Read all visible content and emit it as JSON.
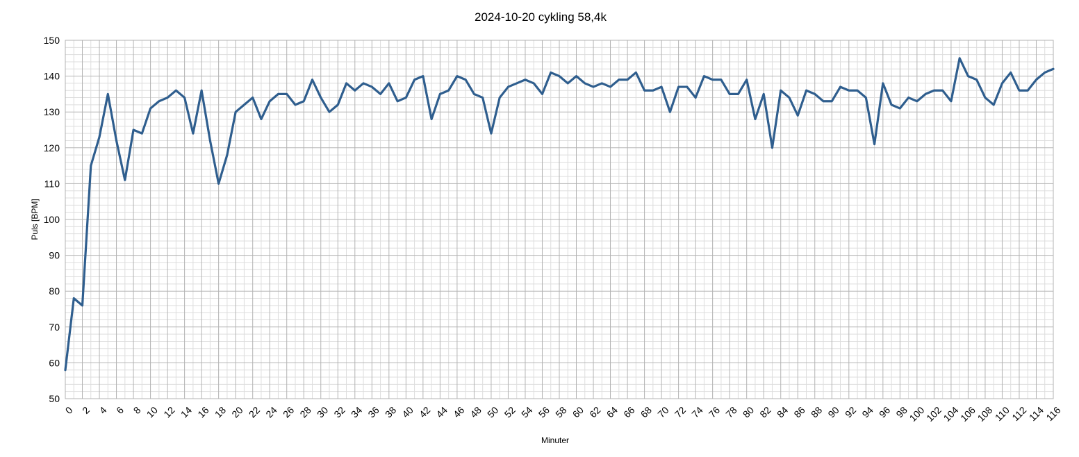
{
  "chart_data": {
    "type": "line",
    "title": "2024-10-20 cykling 58,4k",
    "xlabel": "Minuter",
    "ylabel": "Puls [BPM]",
    "xlim": [
      0,
      116
    ],
    "ylim": [
      50,
      150
    ],
    "y_major_step": 10,
    "y_minor_step": 2,
    "x_major_step": 2,
    "x_minor_step": 1,
    "grid": true,
    "legend": "none",
    "line_color": "#2f5e8e",
    "grid_major_color": "#b3b3b3",
    "grid_minor_color": "#dddddd",
    "x_tick_labels": [
      "0",
      "2",
      "4",
      "6",
      "8",
      "10",
      "12",
      "14",
      "16",
      "18",
      "20",
      "22",
      "24",
      "26",
      "28",
      "30",
      "32",
      "34",
      "36",
      "38",
      "40",
      "42",
      "44",
      "46",
      "48",
      "50",
      "52",
      "54",
      "56",
      "58",
      "60",
      "62",
      "64",
      "66",
      "68",
      "70",
      "72",
      "74",
      "76",
      "78",
      "80",
      "82",
      "84",
      "86",
      "88",
      "90",
      "92",
      "94",
      "96",
      "98",
      "100",
      "102",
      "104",
      "106",
      "108",
      "110",
      "112",
      "114",
      "116"
    ],
    "y_tick_labels": [
      "50",
      "60",
      "70",
      "80",
      "90",
      "100",
      "110",
      "120",
      "130",
      "140",
      "150"
    ],
    "series": [
      {
        "values": [
          58,
          78,
          76,
          115,
          123,
          135,
          122,
          111,
          125,
          124,
          131,
          133,
          134,
          136,
          134,
          124,
          136,
          122,
          110,
          118,
          130,
          132,
          134,
          128,
          133,
          135,
          135,
          132,
          133,
          139,
          134,
          130,
          132,
          138,
          136,
          138,
          137,
          135,
          138,
          133,
          134,
          139,
          140,
          128,
          135,
          136,
          140,
          139,
          135,
          134,
          124,
          134,
          137,
          138,
          139,
          138,
          135,
          141,
          140,
          138,
          140,
          138,
          137,
          138,
          137,
          139,
          139,
          141,
          136,
          136,
          137,
          130,
          137,
          137,
          134,
          140,
          139,
          139,
          135,
          135,
          139,
          128,
          135,
          120,
          136,
          134,
          129,
          136,
          135,
          133,
          133,
          137,
          136,
          136,
          134,
          121,
          138,
          132,
          131,
          134,
          133,
          135,
          136,
          136,
          133,
          145,
          140,
          139,
          134,
          132,
          138,
          141,
          136,
          136,
          139,
          141,
          142
        ]
      }
    ]
  }
}
